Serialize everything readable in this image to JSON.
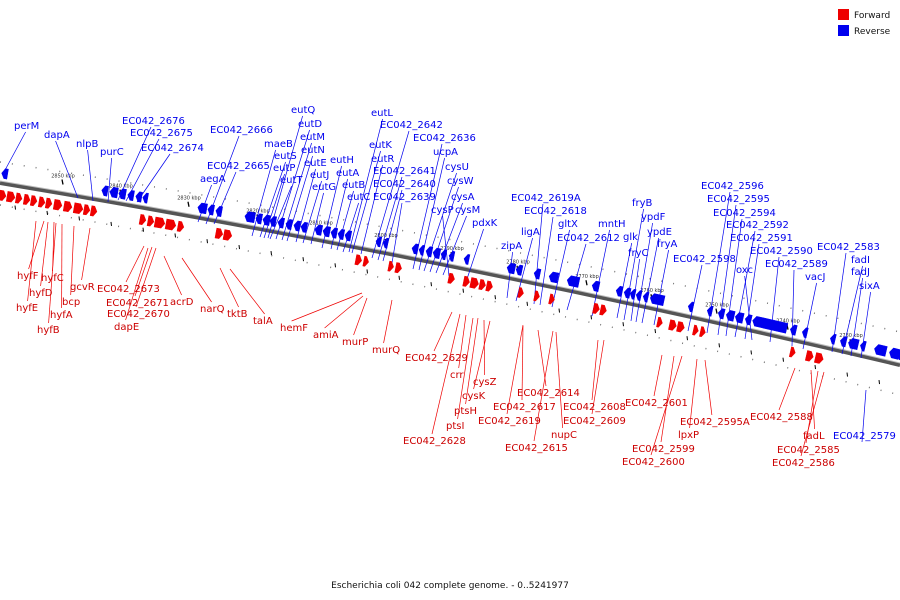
{
  "legend": {
    "forward_label": "Forward",
    "reverse_label": "Reverse",
    "forward_color": "#ee0000",
    "reverse_color": "#0000ee"
  },
  "caption": "Escherichia coli 042 complete genome. - 0..5241977",
  "ticks": [
    "2850 kbp",
    "2840 kbp",
    "2830 kbp",
    "2820 kbp",
    "2810 kbp",
    "2800 kbp",
    "2790 kbp",
    "2780 kbp",
    "2770 kbp",
    "2760 kbp",
    "2750 kbp",
    "2740 kbp",
    "2730 kbp"
  ],
  "reverse_genes": [
    "perM",
    "dapA",
    "nlpB",
    "purC",
    "EC042_2676",
    "EC042_2675",
    "EC042_2674",
    "aegA",
    "EC042_2666",
    "EC042_2665",
    "maeB",
    "eutQ",
    "eutD",
    "eutM",
    "eutN",
    "eutE",
    "eutJ",
    "eutG",
    "eutH",
    "eutA",
    "eutB",
    "eutC",
    "eutS",
    "eutP",
    "eutT",
    "eutL",
    "eutK",
    "eutR",
    "EC042_2642",
    "EC042_2641",
    "EC042_2640",
    "EC042_2639",
    "EC042_2636",
    "ucpA",
    "cysU",
    "cysW",
    "cysA",
    "cysM",
    "cysP",
    "pdxK",
    "zipA",
    "ligA",
    "EC042_2619A",
    "EC042_2618",
    "gltX",
    "EC042_2612",
    "mntH",
    "glk",
    "fryB",
    "fryC",
    "ypdF",
    "ypdE",
    "fryA",
    "EC042_2598",
    "EC042_2596",
    "EC042_2595",
    "EC042_2594",
    "EC042_2592",
    "EC042_2591",
    "oxc",
    "EC042_2590",
    "EC042_2589",
    "vacJ",
    "EC042_2583",
    "fadI",
    "fadJ",
    "sixA",
    "EC042_2579"
  ],
  "forward_genes": [
    "hyfF",
    "hyfC",
    "hyfD",
    "hyfE",
    "hyfA",
    "hyfB",
    "bcp",
    "gcvR",
    "EC042_2673",
    "EC042_2671",
    "EC042_2670",
    "dapE",
    "acrD",
    "narQ",
    "tktB",
    "talA",
    "hemF",
    "amiA",
    "murP",
    "murQ",
    "EC042_2629",
    "crr",
    "ptsH",
    "ptsI",
    "cysZ",
    "cysK",
    "EC042_2628",
    "EC042_2617",
    "EC042_2619",
    "EC042_2614",
    "EC042_2615",
    "nupC",
    "EC042_2608",
    "EC042_2609",
    "EC042_2601",
    "EC042_2599",
    "EC042_2600",
    "lpxP",
    "EC042_2595A",
    "EC042_2588",
    "fadL",
    "EC042_2585",
    "EC042_2586"
  ]
}
